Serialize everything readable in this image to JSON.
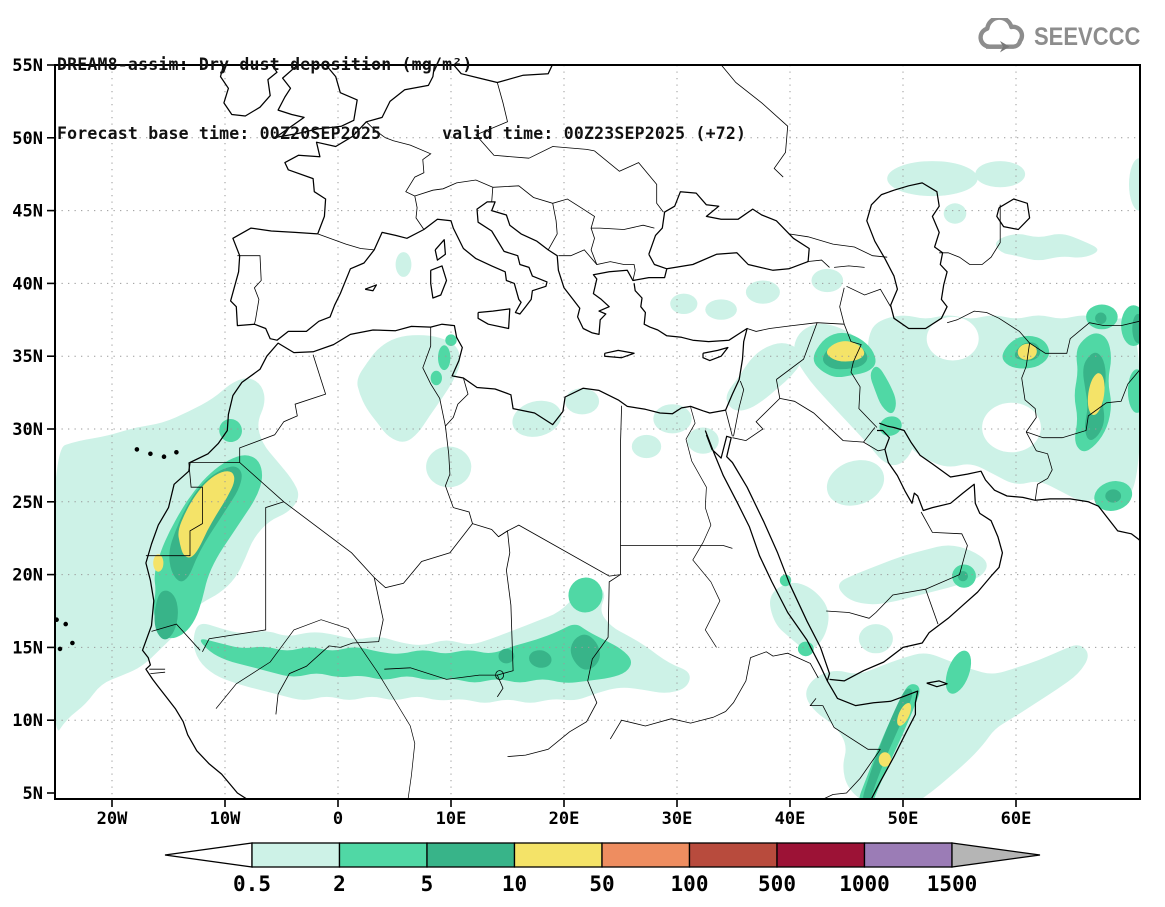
{
  "header": {
    "title_line1": "DREAM8-assim: Dry dust deposition (mg/m²)",
    "title_line2": "Forecast base time: 00Z20SEP2025      valid time: 00Z23SEP2025 (+72)"
  },
  "logo": {
    "text": "SEEVCCC"
  },
  "axes": {
    "lat_ticks": [
      "55N",
      "50N",
      "45N",
      "40N",
      "35N",
      "30N",
      "25N",
      "20N",
      "15N",
      "10N",
      "5N"
    ],
    "lon_ticks": [
      "20W",
      "10W",
      "0",
      "10E",
      "20E",
      "30E",
      "40E",
      "50E",
      "60E"
    ]
  },
  "colorbar": {
    "labels": [
      "0.5",
      "2",
      "5",
      "10",
      "50",
      "100",
      "500",
      "1000",
      "1500"
    ],
    "segment_colors": [
      "#cdf2e7",
      "#50d8a5",
      "#38b489",
      "#f4e368",
      "#ee8d60",
      "#b84b3d",
      "#9c1236",
      "#9b7cb6"
    ],
    "under_color": "#ffffff",
    "over_color": "#b5b5b5"
  },
  "map": {
    "background": "#ffffff",
    "coast_color": "#000000",
    "grid_color": "#9a9a9a",
    "levels": [
      {
        "value": 0.5,
        "color": "#cdf2e7"
      },
      {
        "value": 2,
        "color": "#50d8a5"
      },
      {
        "value": 5,
        "color": "#38b489"
      },
      {
        "value": 10,
        "color": "#f4e368"
      },
      {
        "value": 50,
        "color": "#ee8d60"
      },
      {
        "value": 100,
        "color": "#b84b3d"
      },
      {
        "value": 500,
        "color": "#9c1236"
      },
      {
        "value": 1000,
        "color": "#9b7cb6"
      },
      {
        "value": 1500,
        "color": "#b5b5b5"
      }
    ]
  }
}
